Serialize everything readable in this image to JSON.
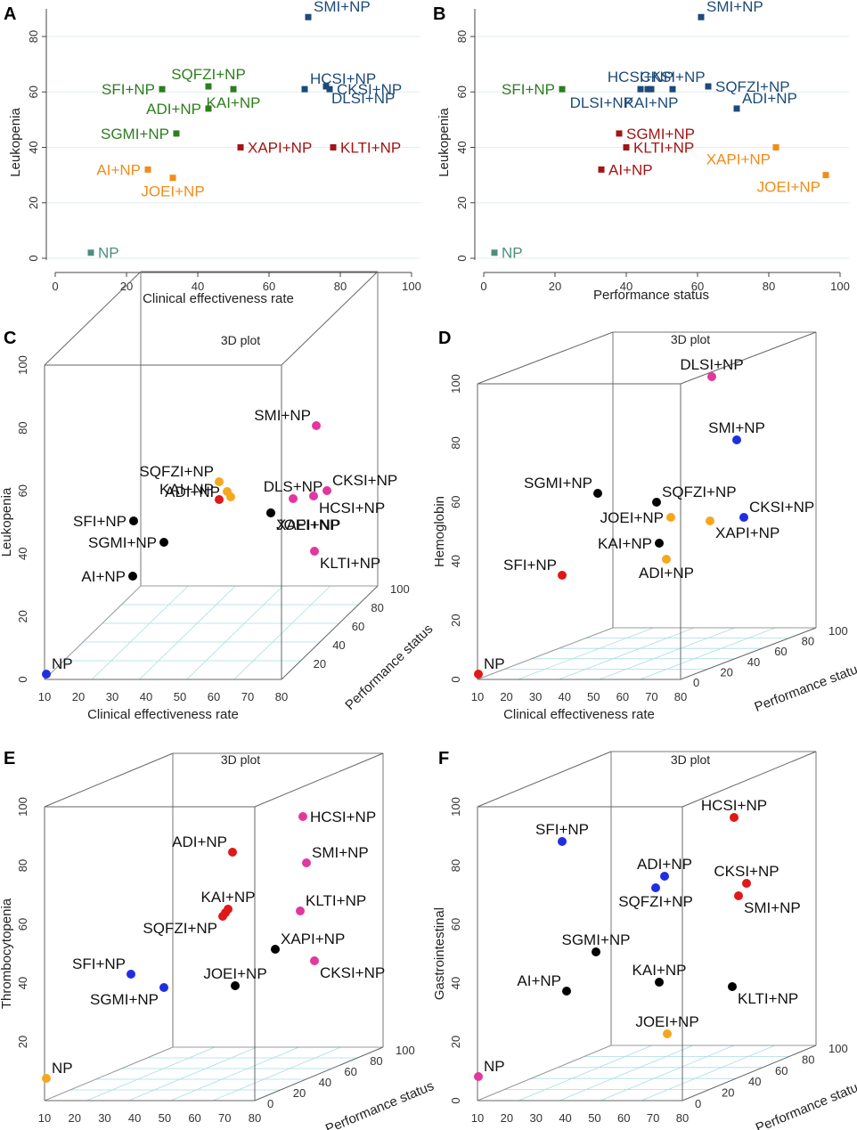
{
  "colors": {
    "green": "#2e7d1e",
    "navy": "#1c4a7a",
    "darkred": "#a31515",
    "orange": "#f28c1a",
    "teal": "#4d8e7e",
    "black": "#000000",
    "blue": "#1f2fe0",
    "red": "#e01818",
    "gold": "#f5a81e",
    "magenta": "#e2379f",
    "grid": "#e3ecef",
    "floorgrid": "#a9dce6"
  },
  "chart_data": [
    {
      "id": "A",
      "type": "scatter",
      "panel_letter": "A",
      "xlabel": "Clinical effectiveness rate",
      "ylabel": "Leukopenia",
      "xlim": [
        0,
        100
      ],
      "ylim": [
        0,
        80
      ],
      "xticks": [
        "0",
        "20",
        "40",
        "60",
        "80",
        "100"
      ],
      "yticks": [
        "0",
        "20",
        "40",
        "60",
        "80"
      ],
      "points": [
        {
          "label": "SMI+NP",
          "x": 71,
          "y": 87,
          "color": "navy",
          "lpos": "ne"
        },
        {
          "label": "HCSI+NP",
          "x": 70,
          "y": 61,
          "color": "navy",
          "lpos": "ne"
        },
        {
          "label": "CKSI+NP",
          "x": 77,
          "y": 61,
          "color": "navy",
          "lpos": "e"
        },
        {
          "label": "DLSI+NP",
          "x": 76,
          "y": 62,
          "color": "navy",
          "lpos": "se"
        },
        {
          "label": "SFI+NP",
          "x": 30,
          "y": 61,
          "color": "green",
          "lpos": "w"
        },
        {
          "label": "SQFZI+NP",
          "x": 43,
          "y": 62,
          "color": "green",
          "lpos": "n"
        },
        {
          "label": "ADI+NP",
          "x": 43,
          "y": 54,
          "color": "green",
          "lpos": "w"
        },
        {
          "label": "KAI+NP",
          "x": 50,
          "y": 61,
          "color": "green",
          "lpos": "s"
        },
        {
          "label": "SGMI+NP",
          "x": 34,
          "y": 45,
          "color": "green",
          "lpos": "w"
        },
        {
          "label": "XAPI+NP",
          "x": 52,
          "y": 40,
          "color": "darkred",
          "lpos": "e"
        },
        {
          "label": "KLTI+NP",
          "x": 78,
          "y": 40,
          "color": "darkred",
          "lpos": "e"
        },
        {
          "label": "AI+NP",
          "x": 26,
          "y": 32,
          "color": "orange",
          "lpos": "w"
        },
        {
          "label": "JOEI+NP",
          "x": 33,
          "y": 29,
          "color": "orange",
          "lpos": "s"
        },
        {
          "label": "NP",
          "x": 10,
          "y": 2,
          "color": "teal",
          "lpos": "e"
        }
      ]
    },
    {
      "id": "B",
      "type": "scatter",
      "panel_letter": "B",
      "xlabel": "Performance status",
      "ylabel": "Leukopenia",
      "xlim": [
        0,
        100
      ],
      "ylim": [
        0,
        80
      ],
      "xticks": [
        "0",
        "20",
        "40",
        "60",
        "80",
        "100"
      ],
      "yticks": [
        "0",
        "20",
        "40",
        "60",
        "80"
      ],
      "points": [
        {
          "label": "SMI+NP",
          "x": 61,
          "y": 87,
          "color": "navy",
          "lpos": "ne"
        },
        {
          "label": "HCSI+NP",
          "x": 44,
          "y": 61,
          "color": "navy",
          "lpos": "n"
        },
        {
          "label": "DLSI+NP",
          "x": 46,
          "y": 61,
          "color": "navy",
          "lpos": "w2"
        },
        {
          "label": "KAI+NP",
          "x": 47,
          "y": 61,
          "color": "navy",
          "lpos": "s"
        },
        {
          "label": "CKSI+NP",
          "x": 53,
          "y": 61,
          "color": "navy",
          "lpos": "n"
        },
        {
          "label": "SQFZI+NP",
          "x": 63,
          "y": 62,
          "color": "navy",
          "lpos": "e"
        },
        {
          "label": "ADI+NP",
          "x": 71,
          "y": 54,
          "color": "navy",
          "lpos": "ne"
        },
        {
          "label": "SFI+NP",
          "x": 22,
          "y": 61,
          "color": "green",
          "lpos": "w"
        },
        {
          "label": "SGMI+NP",
          "x": 38,
          "y": 45,
          "color": "darkred",
          "lpos": "e"
        },
        {
          "label": "KLTI+NP",
          "x": 40,
          "y": 40,
          "color": "darkred",
          "lpos": "e"
        },
        {
          "label": "AI+NP",
          "x": 33,
          "y": 32,
          "color": "darkred",
          "lpos": "e"
        },
        {
          "label": "XAPI+NP",
          "x": 82,
          "y": 40,
          "color": "orange",
          "lpos": "sw"
        },
        {
          "label": "JOEI+NP",
          "x": 96,
          "y": 30,
          "color": "orange",
          "lpos": "sw"
        },
        {
          "label": "NP",
          "x": 3,
          "y": 2,
          "color": "teal",
          "lpos": "e"
        }
      ]
    },
    {
      "id": "C",
      "type": "scatter3d",
      "panel_letter": "C",
      "title": "3D plot",
      "xlabel": "Clinical effectiveness rate",
      "ylabel": "Performance status",
      "zlabel": "Leukopenia",
      "xlim": [
        10,
        80
      ],
      "ylim": [
        0,
        100
      ],
      "zlim": [
        0,
        100
      ],
      "xticks": [
        "10",
        "20",
        "30",
        "40",
        "50",
        "60",
        "70",
        "80"
      ],
      "yticks": [
        "20",
        "40",
        "60",
        "80",
        "100"
      ],
      "zticks": [
        "0",
        "20",
        "40",
        "60",
        "80",
        "100"
      ],
      "points": [
        {
          "label": "SMI+NP",
          "color": "magenta",
          "lpos": "nw"
        },
        {
          "label": "SQFZI+NP",
          "color": "gold",
          "lpos": "nw"
        },
        {
          "label": "ADI+NP",
          "color": "gold",
          "lpos": "w"
        },
        {
          "label": "",
          "color": "gold",
          "lpos": "none"
        },
        {
          "label": "DLS+NP",
          "color": "magenta",
          "lpos": "n"
        },
        {
          "label": "CKSI+NP",
          "color": "magenta",
          "lpos": "ne"
        },
        {
          "label": "HCSI+NP",
          "color": "magenta",
          "lpos": "se"
        },
        {
          "label": "KAI+NP",
          "color": "red",
          "lpos": "nw"
        },
        {
          "label": "XAPI+NP",
          "color": "red",
          "lpos": "se"
        },
        {
          "label": "SFI+NP",
          "color": "black",
          "lpos": "w"
        },
        {
          "label": "SGMI+NP",
          "color": "black",
          "lpos": "w"
        },
        {
          "label": "JOEI+NP",
          "color": "black",
          "lpos": "se"
        },
        {
          "label": "KLTI+NP",
          "color": "magenta",
          "lpos": "se"
        },
        {
          "label": "AI+NP",
          "color": "black",
          "lpos": "w"
        },
        {
          "label": "NP",
          "color": "blue",
          "lpos": "ne"
        }
      ]
    },
    {
      "id": "D",
      "type": "scatter3d",
      "panel_letter": "D",
      "title": "3D plot",
      "xlabel": "Clinical effectiveness rate",
      "ylabel": "Performance status",
      "zlabel": "Hemoglobin",
      "xlim": [
        10,
        80
      ],
      "ylim": [
        0,
        100
      ],
      "zlim": [
        0,
        100
      ],
      "xticks": [
        "10",
        "20",
        "30",
        "40",
        "50",
        "60",
        "70",
        "80"
      ],
      "yticks": [
        "0",
        "20",
        "40",
        "60",
        "80",
        "100"
      ],
      "zticks": [
        "0",
        "20",
        "40",
        "60",
        "80",
        "100"
      ],
      "points": [
        {
          "label": "DLSI+NP",
          "color": "magenta",
          "lpos": "n"
        },
        {
          "label": "SMI+NP",
          "color": "blue",
          "lpos": "n"
        },
        {
          "label": "SGMI+NP",
          "color": "black",
          "lpos": "nw"
        },
        {
          "label": "SQFZI+NP",
          "color": "black",
          "lpos": "ne"
        },
        {
          "label": "JOEI+NP",
          "color": "gold",
          "lpos": "w"
        },
        {
          "label": "XAPI+NP",
          "color": "gold",
          "lpos": "se"
        },
        {
          "label": "CKSI+NP",
          "color": "blue",
          "lpos": "ne"
        },
        {
          "label": "KAI+NP",
          "color": "black",
          "lpos": "w"
        },
        {
          "label": "ADI+NP",
          "color": "gold",
          "lpos": "s"
        },
        {
          "label": "SFI+NP",
          "color": "red",
          "lpos": "nw"
        },
        {
          "label": "NP",
          "color": "red",
          "lpos": "ne"
        }
      ]
    },
    {
      "id": "E",
      "type": "scatter3d",
      "panel_letter": "E",
      "title": "3D plot",
      "xlabel": "Clinical effectiveness rate",
      "ylabel": "Performance status",
      "zlabel": "Thrombocytopenia",
      "xlim": [
        10,
        80
      ],
      "ylim": [
        0,
        100
      ],
      "zlim": [
        0,
        100
      ],
      "xticks": [
        "10",
        "20",
        "30",
        "40",
        "50",
        "60",
        "70",
        "80"
      ],
      "yticks": [
        "0",
        "20",
        "40",
        "60",
        "80",
        "100"
      ],
      "zticks": [
        "20",
        "40",
        "60",
        "80",
        "100"
      ],
      "points": [
        {
          "label": "HCSI+NP",
          "color": "magenta",
          "lpos": "e"
        },
        {
          "label": "SMI+NP",
          "color": "magenta",
          "lpos": "ne"
        },
        {
          "label": "ADI+NP",
          "color": "red",
          "lpos": "nw"
        },
        {
          "label": "KAI+NP",
          "color": "red",
          "lpos": "n"
        },
        {
          "label": "SQFZI+NP",
          "color": "red",
          "lpos": "sw"
        },
        {
          "label": "",
          "color": "red",
          "lpos": "none"
        },
        {
          "label": "KLTI+NP",
          "color": "magenta",
          "lpos": "ne"
        },
        {
          "label": "XAPI+NP",
          "color": "black",
          "lpos": "ne"
        },
        {
          "label": "CKSI+NP",
          "color": "magenta",
          "lpos": "se"
        },
        {
          "label": "SFI+NP",
          "color": "blue",
          "lpos": "nw"
        },
        {
          "label": "SGMI+NP",
          "color": "blue",
          "lpos": "sw"
        },
        {
          "label": "JOEI+NP",
          "color": "black",
          "lpos": "n"
        },
        {
          "label": "NP",
          "color": "gold",
          "lpos": "ne"
        }
      ]
    },
    {
      "id": "F",
      "type": "scatter3d",
      "panel_letter": "F",
      "title": "3D plot",
      "xlabel": "Clinical effectiveness rate",
      "ylabel": "Performance status",
      "zlabel": "Gastrointestinal",
      "xlim": [
        10,
        80
      ],
      "ylim": [
        0,
        100
      ],
      "zlim": [
        0,
        100
      ],
      "xticks": [
        "10",
        "20",
        "30",
        "40",
        "50",
        "60",
        "70",
        "80"
      ],
      "yticks": [
        "0",
        "20",
        "40",
        "60",
        "80",
        "100"
      ],
      "zticks": [
        "0",
        "20",
        "40",
        "60",
        "80",
        "100"
      ],
      "points": [
        {
          "label": "HCSI+NP",
          "color": "red",
          "lpos": "n"
        },
        {
          "label": "SFI+NP",
          "color": "blue",
          "lpos": "n"
        },
        {
          "label": "ADI+NP",
          "color": "blue",
          "lpos": "n"
        },
        {
          "label": "SQFZI+NP",
          "color": "blue",
          "lpos": "s"
        },
        {
          "label": "CKSI+NP",
          "color": "red",
          "lpos": "n"
        },
        {
          "label": "SMI+NP",
          "color": "red",
          "lpos": "se"
        },
        {
          "label": "SGMI+NP",
          "color": "black",
          "lpos": "n"
        },
        {
          "label": "KAI+NP",
          "color": "black",
          "lpos": "n"
        },
        {
          "label": "AI+NP",
          "color": "black",
          "lpos": "nw"
        },
        {
          "label": "KLTI+NP",
          "color": "black",
          "lpos": "se"
        },
        {
          "label": "JOEI+NP",
          "color": "gold",
          "lpos": "n"
        },
        {
          "label": "NP",
          "color": "magenta",
          "lpos": "ne"
        }
      ]
    }
  ]
}
